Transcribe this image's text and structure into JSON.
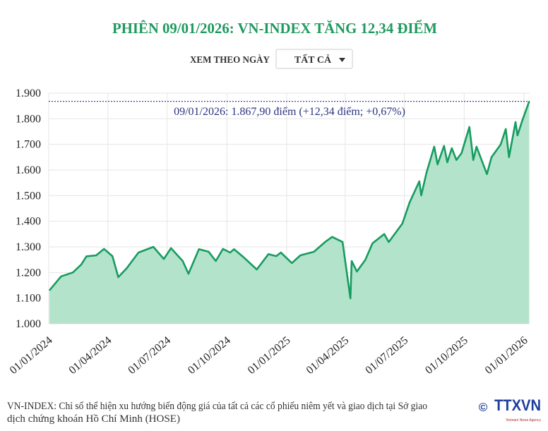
{
  "header": {
    "title": "PHIÊN 09/01/2026: VN-INDEX TĂNG 12,34 ĐIỂM",
    "filter_label": "XEM THEO NGÀY",
    "filter_selected": "TẤT CẢ"
  },
  "chart_data": {
    "type": "area",
    "title": "PHIÊN 09/01/2026: VN-INDEX TĂNG 12,34 ĐIỂM",
    "xlabel": "",
    "ylabel": "",
    "ylim": [
      1000,
      1900
    ],
    "yticks": [
      "1.000",
      "1.100",
      "1.200",
      "1.300",
      "1.400",
      "1.500",
      "1.600",
      "1.700",
      "1.800",
      "1.900"
    ],
    "ytick_values": [
      1000,
      1100,
      1200,
      1300,
      1400,
      1500,
      1600,
      1700,
      1800,
      1900
    ],
    "xticks": [
      "01/01/2024",
      "01/04/2024",
      "01/07/2024",
      "01/10/2024",
      "01/01/2025",
      "01/04/2025",
      "01/07/2025",
      "01/10/2025",
      "01/01/2026"
    ],
    "xtick_dates": [
      "2024-01-01",
      "2024-04-01",
      "2024-07-01",
      "2024-10-01",
      "2025-01-01",
      "2025-04-01",
      "2025-07-01",
      "2025-10-01",
      "2026-01-01"
    ],
    "grid": true,
    "line_color": "#169c60",
    "fill_color": "#b4e3cb",
    "reference_line": {
      "value": 1867.9,
      "color": "#2a3480",
      "style": "dotted"
    },
    "annotation": "09/01/2026: 1.867,90 điểm (+12,34 điểm; +0,67%)",
    "series": [
      {
        "x": [
          "2024-01-02",
          "2024-01-20",
          "2024-02-07",
          "2024-02-20",
          "2024-02-28",
          "2024-03-14",
          "2024-03-26",
          "2024-04-08",
          "2024-04-17",
          "2024-04-30",
          "2024-05-18",
          "2024-06-10",
          "2024-06-26",
          "2024-07-07",
          "2024-07-25",
          "2024-08-03",
          "2024-08-19",
          "2024-09-03",
          "2024-09-14",
          "2024-09-25",
          "2024-10-06",
          "2024-10-12",
          "2024-10-27",
          "2024-11-16",
          "2024-12-04",
          "2024-12-16",
          "2024-12-23",
          "2025-01-09",
          "2025-01-22",
          "2025-02-12",
          "2025-03-01",
          "2025-03-12",
          "2025-03-28",
          "2025-04-09",
          "2025-04-11",
          "2025-04-19",
          "2025-05-02",
          "2025-05-13",
          "2025-05-31",
          "2025-06-07",
          "2025-06-28",
          "2025-07-09",
          "2025-07-24",
          "2025-07-27",
          "2025-08-04",
          "2025-08-16",
          "2025-08-21",
          "2025-08-31",
          "2025-09-05",
          "2025-09-12",
          "2025-09-19",
          "2025-09-27",
          "2025-10-09",
          "2025-10-15",
          "2025-10-20",
          "2025-11-05",
          "2025-11-12",
          "2025-11-26",
          "2025-12-04",
          "2025-12-09",
          "2025-12-19",
          "2025-12-22",
          "2025-12-29",
          "2026-01-09"
        ],
        "values": [
          1130,
          1185,
          1200,
          1231,
          1263,
          1267,
          1292,
          1264,
          1182,
          1217,
          1278,
          1300,
          1253,
          1295,
          1245,
          1195,
          1291,
          1281,
          1245,
          1292,
          1278,
          1291,
          1259,
          1212,
          1272,
          1264,
          1278,
          1237,
          1267,
          1281,
          1319,
          1339,
          1319,
          1099,
          1245,
          1204,
          1250,
          1314,
          1350,
          1319,
          1391,
          1473,
          1556,
          1501,
          1589,
          1691,
          1622,
          1694,
          1630,
          1685,
          1639,
          1666,
          1768,
          1639,
          1691,
          1584,
          1650,
          1699,
          1760,
          1650,
          1787,
          1735,
          1790,
          1867.9
        ]
      }
    ]
  },
  "footer": {
    "note_line1": "VN-INDEX: Chỉ số thể hiện xu hướng biến động giá của tất cả các cổ phiếu niêm yết và giao dịch tại Sở giao",
    "note_line2": "dịch chứng khoán Hồ Chí Minh (HOSE)",
    "copyright_symbol": "©",
    "logo_text": "TTXVN",
    "logo_subtext": "Vietnam News Agency"
  }
}
